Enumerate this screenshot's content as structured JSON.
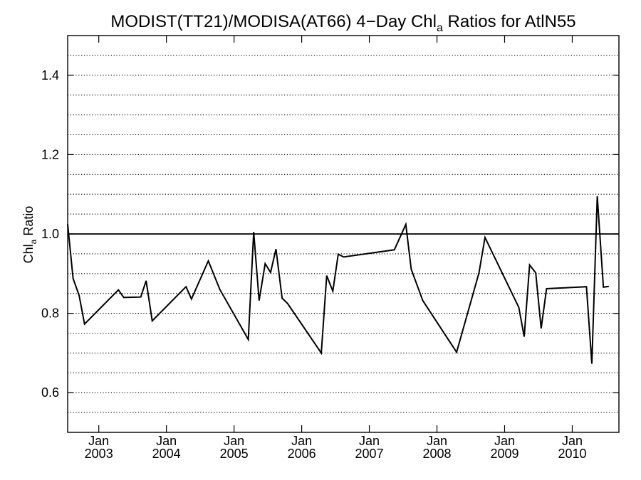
{
  "chart_data": {
    "type": "line",
    "title": {
      "prefix": "MODIST(TT21)/MODISA(AT66) 4−Day Chl",
      "subscript": "a",
      "suffix": " Ratios for AtlN55"
    },
    "xlabel": "",
    "ylabel": {
      "prefix": "Chl",
      "subscript": "a",
      "suffix": " Ratio"
    },
    "xlim": [
      2002.54,
      2010.69
    ],
    "ylim": [
      0.5,
      1.5
    ],
    "y_ticks": [
      {
        "value": 0.6,
        "label": "0.6"
      },
      {
        "value": 0.8,
        "label": "0.8"
      },
      {
        "value": 1.0,
        "label": "1.0"
      },
      {
        "value": 1.2,
        "label": "1.2"
      },
      {
        "value": 1.4,
        "label": "1.4"
      }
    ],
    "grid_y": [
      0.55,
      0.6,
      0.65,
      0.7,
      0.75,
      0.8,
      0.85,
      0.9,
      0.95,
      1.05,
      1.1,
      1.15,
      1.2,
      1.25,
      1.3,
      1.35,
      1.4,
      1.45
    ],
    "grid_style": "dotted",
    "x_ticks": [
      {
        "value": 2003.0,
        "month": "Jan",
        "year": "2003"
      },
      {
        "value": 2004.0,
        "month": "Jan",
        "year": "2004"
      },
      {
        "value": 2005.0,
        "month": "Jan",
        "year": "2005"
      },
      {
        "value": 2006.0,
        "month": "Jan",
        "year": "2006"
      },
      {
        "value": 2007.0,
        "month": "Jan",
        "year": "2007"
      },
      {
        "value": 2008.0,
        "month": "Jan",
        "year": "2008"
      },
      {
        "value": 2009.0,
        "month": "Jan",
        "year": "2009"
      },
      {
        "value": 2010.0,
        "month": "Jan",
        "year": "2010"
      }
    ],
    "reference_line": 1.0,
    "series": [
      {
        "color": "#000000",
        "points": [
          [
            2002.54,
            1.025
          ],
          [
            2002.62,
            0.888
          ],
          [
            2002.71,
            0.845
          ],
          [
            2002.79,
            0.773
          ],
          [
            2003.29,
            0.859
          ],
          [
            2003.37,
            0.84
          ],
          [
            2003.62,
            0.841
          ],
          [
            2003.7,
            0.882
          ],
          [
            2003.79,
            0.781
          ],
          [
            2004.29,
            0.867
          ],
          [
            2004.37,
            0.836
          ],
          [
            2004.62,
            0.932
          ],
          [
            2004.79,
            0.86
          ],
          [
            2005.21,
            0.734
          ],
          [
            2005.29,
            1.005
          ],
          [
            2005.37,
            0.832
          ],
          [
            2005.46,
            0.925
          ],
          [
            2005.54,
            0.903
          ],
          [
            2005.62,
            0.962
          ],
          [
            2005.71,
            0.838
          ],
          [
            2005.79,
            0.825
          ],
          [
            2006.29,
            0.7
          ],
          [
            2006.37,
            0.895
          ],
          [
            2006.46,
            0.856
          ],
          [
            2006.54,
            0.949
          ],
          [
            2006.62,
            0.942
          ],
          [
            2007.37,
            0.96
          ],
          [
            2007.54,
            1.024
          ],
          [
            2007.62,
            0.911
          ],
          [
            2007.79,
            0.832
          ],
          [
            2008.29,
            0.702
          ],
          [
            2008.62,
            0.901
          ],
          [
            2008.71,
            0.991
          ],
          [
            2009.21,
            0.815
          ],
          [
            2009.29,
            0.741
          ],
          [
            2009.37,
            0.922
          ],
          [
            2009.46,
            0.902
          ],
          [
            2009.54,
            0.762
          ],
          [
            2009.62,
            0.862
          ],
          [
            2010.21,
            0.867
          ],
          [
            2010.29,
            0.673
          ],
          [
            2010.37,
            1.095
          ],
          [
            2010.46,
            0.866
          ],
          [
            2010.54,
            0.868
          ]
        ]
      }
    ]
  }
}
